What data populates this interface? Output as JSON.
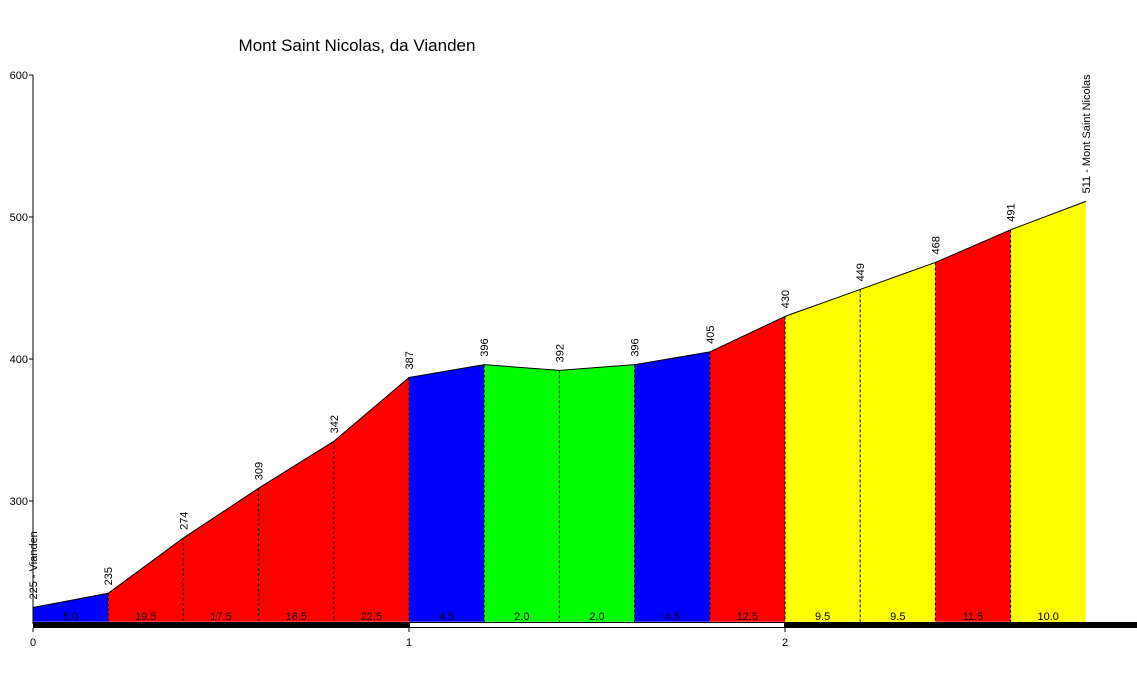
{
  "chart_data": {
    "type": "profile",
    "title": "Mont Saint Nicolas, da Vianden",
    "x": [
      0,
      0.2,
      0.4,
      0.6,
      0.8,
      1,
      1.2,
      1.4,
      1.6,
      1.8,
      2,
      2.2,
      2.4,
      2.6,
      2.8
    ],
    "values": [
      225,
      235,
      274,
      309,
      342,
      387,
      396,
      392,
      396,
      405,
      430,
      449,
      468,
      491,
      511
    ],
    "value_labels": [
      "225 - Vianden",
      "235",
      "274",
      "309",
      "342",
      "387",
      "396",
      "392",
      "396",
      "405",
      "430",
      "449",
      "468",
      "491",
      "511 - Mont Saint Nicolas"
    ],
    "gradients": [
      5,
      19.5,
      17.5,
      16.5,
      22.5,
      4.5,
      2,
      2,
      4.5,
      12.5,
      9.5,
      9.5,
      11.5,
      10
    ],
    "gradient_labels": [
      "5.0",
      "19.5",
      "17.5",
      "16.5",
      "22.5",
      "4.5",
      "2.0",
      "2.0",
      "4.5",
      "12.5",
      "9.5",
      "9.5",
      "11.5",
      "10.0"
    ],
    "colors": [
      "#0000ff",
      "#ff0000",
      "#ff0000",
      "#ff0000",
      "#ff0000",
      "#0000ff",
      "#00ff00",
      "#00ff00",
      "#0000ff",
      "#ff0000",
      "#ffff00",
      "#ffff00",
      "#ff0000",
      "#ffff00"
    ],
    "xlim": [
      0,
      2.937
    ],
    "ylim": [
      215,
      600
    ],
    "xticks": [
      0,
      1,
      2
    ],
    "yticks": [
      300,
      400,
      500,
      600
    ]
  }
}
